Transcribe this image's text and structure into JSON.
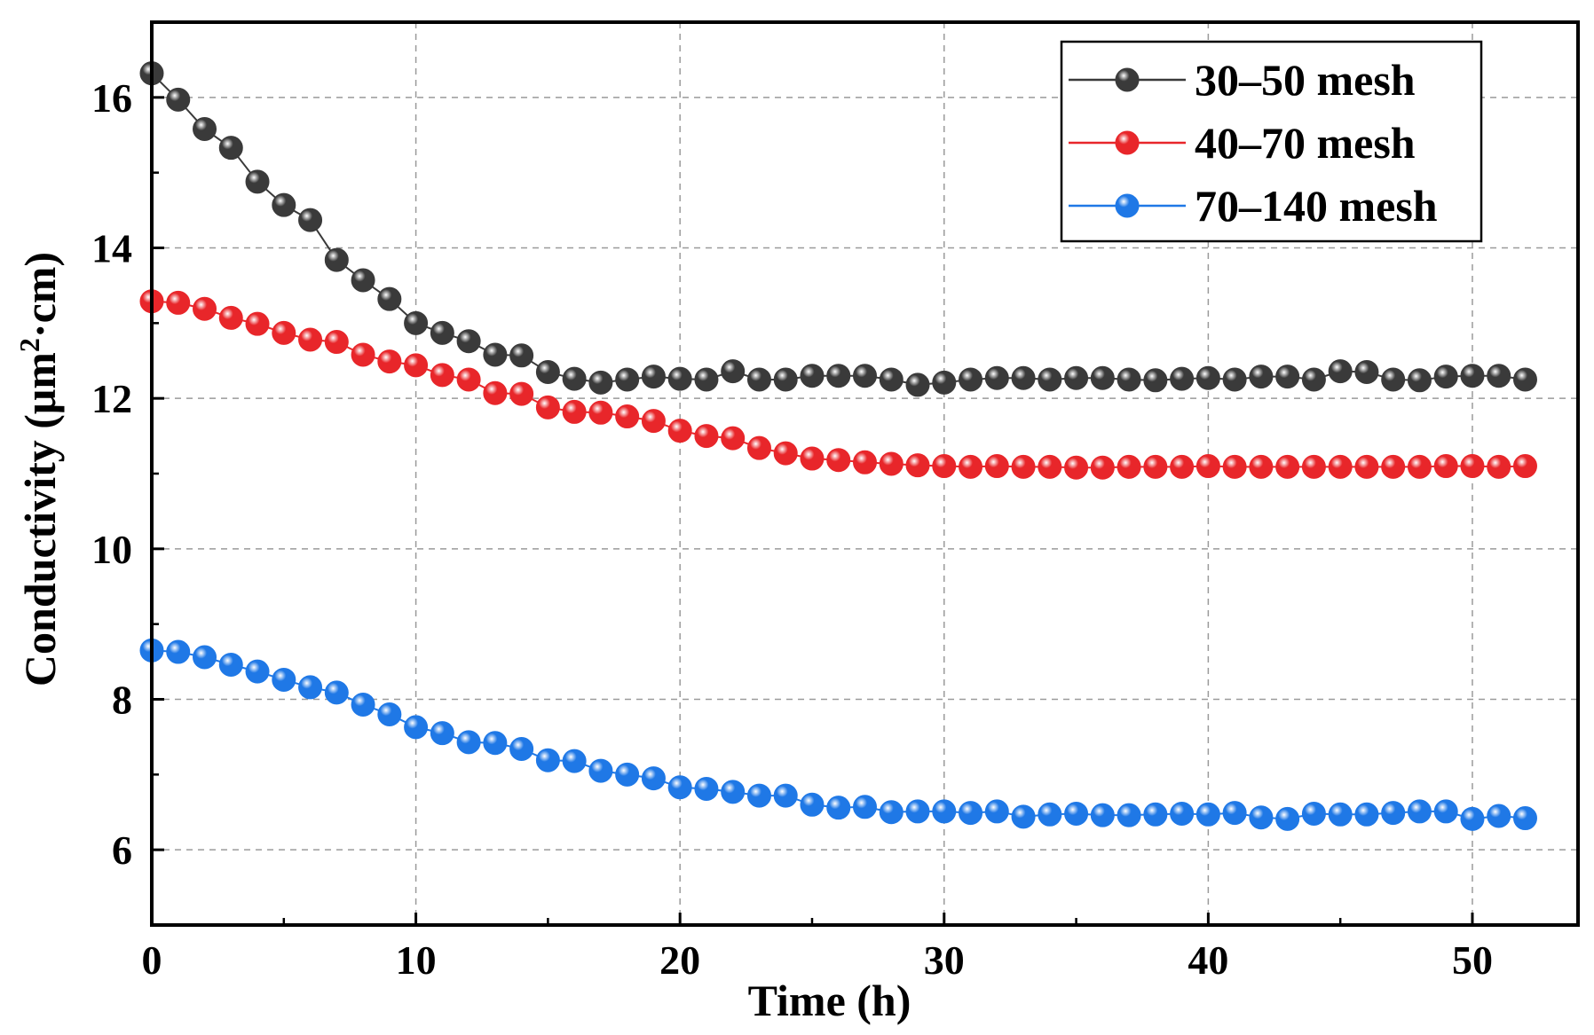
{
  "chart_data": {
    "type": "line",
    "title": "",
    "xlabel": "Time (h)",
    "ylabel": "Conductivity (μm²·cm)",
    "ylabel_parts": {
      "pre": "Conductivity (μm",
      "sup": "2",
      "post": "·cm)"
    },
    "xlim": [
      0,
      54
    ],
    "ylim": [
      5,
      17
    ],
    "xticks": [
      0,
      10,
      20,
      30,
      40,
      50
    ],
    "yticks": [
      6,
      8,
      10,
      12,
      14,
      16
    ],
    "grid": true,
    "legend_position": "top-right",
    "x": [
      0,
      1,
      2,
      3,
      4,
      5,
      6,
      7,
      8,
      9,
      10,
      11,
      12,
      13,
      14,
      15,
      16,
      17,
      18,
      19,
      20,
      21,
      22,
      23,
      24,
      25,
      26,
      27,
      28,
      29,
      30,
      31,
      32,
      33,
      34,
      35,
      36,
      37,
      38,
      39,
      40,
      41,
      42,
      43,
      44,
      45,
      46,
      47,
      48,
      49,
      50,
      51,
      52
    ],
    "series": [
      {
        "name": "30–50 mesh",
        "color": "#3a3a3a",
        "values": [
          16.32,
          15.97,
          15.58,
          15.33,
          14.88,
          14.57,
          14.37,
          13.84,
          13.57,
          13.32,
          13.0,
          12.87,
          12.76,
          12.58,
          12.57,
          12.35,
          12.26,
          12.21,
          12.25,
          12.29,
          12.26,
          12.25,
          12.36,
          12.25,
          12.25,
          12.3,
          12.3,
          12.3,
          12.25,
          12.18,
          12.21,
          12.25,
          12.27,
          12.27,
          12.25,
          12.27,
          12.27,
          12.25,
          12.24,
          12.26,
          12.27,
          12.25,
          12.29,
          12.29,
          12.25,
          12.36,
          12.35,
          12.25,
          12.24,
          12.29,
          12.3,
          12.3,
          12.25
        ]
      },
      {
        "name": "40–70 mesh",
        "color": "#e8262a",
        "values": [
          13.29,
          13.27,
          13.19,
          13.07,
          12.99,
          12.87,
          12.78,
          12.75,
          12.58,
          12.49,
          12.44,
          12.31,
          12.25,
          12.07,
          12.06,
          11.88,
          11.82,
          11.81,
          11.76,
          11.7,
          11.57,
          11.5,
          11.47,
          11.34,
          11.27,
          11.2,
          11.18,
          11.15,
          11.13,
          11.11,
          11.1,
          11.09,
          11.1,
          11.09,
          11.09,
          11.08,
          11.08,
          11.09,
          11.09,
          11.09,
          11.1,
          11.09,
          11.09,
          11.09,
          11.09,
          11.09,
          11.09,
          11.09,
          11.09,
          11.1,
          11.1,
          11.09,
          11.1
        ]
      },
      {
        "name": "70–140 mesh",
        "color": "#1f78e6",
        "values": [
          8.65,
          8.63,
          8.56,
          8.46,
          8.37,
          8.26,
          8.16,
          8.09,
          7.93,
          7.8,
          7.63,
          7.55,
          7.43,
          7.42,
          7.34,
          7.19,
          7.18,
          7.05,
          7.0,
          6.95,
          6.83,
          6.81,
          6.77,
          6.72,
          6.72,
          6.6,
          6.56,
          6.57,
          6.5,
          6.51,
          6.51,
          6.49,
          6.51,
          6.44,
          6.47,
          6.48,
          6.46,
          6.46,
          6.47,
          6.48,
          6.47,
          6.49,
          6.43,
          6.41,
          6.48,
          6.47,
          6.47,
          6.49,
          6.51,
          6.51,
          6.41,
          6.45,
          6.42
        ]
      }
    ]
  }
}
